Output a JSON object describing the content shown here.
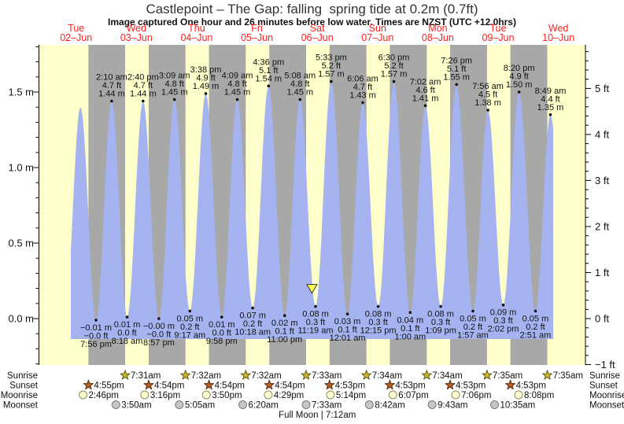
{
  "header": {
    "title": "Castlepoint – The Gap: falling  spring tide at 0.2m (0.7ft)",
    "subtitle": "Image captured One hour and 26 minutes before low water. Times are NZST (UTC +12.0hrs)"
  },
  "colors": {
    "background": "#ffffff",
    "day_band": "#ffffcc",
    "night_band": "#a8a8a8",
    "tide_fill": "#a5b4f0",
    "date_label": "#ff2222",
    "marker_fill": "#ffff55",
    "marker_stroke": "#333333",
    "axis": "#000000",
    "text": "#111111"
  },
  "chart_data": {
    "type": "area",
    "title": "Castlepoint – The Gap: falling  spring tide at 0.2m (0.7ft)",
    "ylabel_left": "m",
    "ylabel_right": "ft",
    "y_range_m": [
      -0.3,
      1.8
    ],
    "grid": false,
    "days": [
      {
        "name": "Tue",
        "date": "02–Jun"
      },
      {
        "name": "Wed",
        "date": "03–Jun"
      },
      {
        "name": "Thu",
        "date": "04–Jun"
      },
      {
        "name": "Fri",
        "date": "05–Jun"
      },
      {
        "name": "Sat",
        "date": "06–Jun"
      },
      {
        "name": "Sun",
        "date": "07–Jun"
      },
      {
        "name": "Mon",
        "date": "08–Jun"
      },
      {
        "name": "Tue",
        "date": "09–Jun"
      },
      {
        "name": "Wed",
        "date": "10–Jun"
      }
    ],
    "y_axis_left": {
      "unit": "m",
      "labels": [
        {
          "m": 0.0,
          "text": "0.0 m"
        },
        {
          "m": 0.5,
          "text": "0.5 m"
        },
        {
          "m": 1.0,
          "text": "1.0 m"
        },
        {
          "m": 1.5,
          "text": "1.5 m"
        }
      ]
    },
    "y_axis_right": {
      "unit": "ft",
      "labels": [
        {
          "ft": -1,
          "text": "−1 ft"
        },
        {
          "ft": 0,
          "text": "0 ft"
        },
        {
          "ft": 1,
          "text": "1 ft"
        },
        {
          "ft": 2,
          "text": "2 ft"
        },
        {
          "ft": 3,
          "text": "3 ft"
        },
        {
          "ft": 4,
          "text": "4 ft"
        },
        {
          "ft": 5,
          "text": "5 ft"
        }
      ]
    },
    "data_window": {
      "start": {
        "day": 0,
        "time": "9:54 am"
      },
      "end": {
        "day": 8,
        "time": "9:54 am"
      }
    },
    "current_marker": {
      "day": 4,
      "time": "9:53 am",
      "height_m": 0.2
    },
    "tide_events": [
      {
        "day": 0,
        "time": "7:30 am",
        "height_m": 0.0
      },
      {
        "day": 0,
        "time": "1:45 pm",
        "height_m": 1.4
      },
      {
        "day": 0,
        "time": "7:56 pm",
        "height_m": -0.01,
        "kind": "low",
        "lines": [
          "−0.01 m",
          "−0.0 ft",
          "7:56 pm"
        ]
      },
      {
        "day": 1,
        "time": "2:10 am",
        "height_m": 1.44,
        "kind": "high",
        "lines": [
          "2:10 am",
          "4.7 ft",
          "1.44 m"
        ]
      },
      {
        "day": 1,
        "time": "8:18 am",
        "height_m": 0.01,
        "kind": "low",
        "lines": [
          "0.01 m",
          "0.0 ft",
          "8:18 am"
        ]
      },
      {
        "day": 1,
        "time": "2:40 pm",
        "height_m": 1.44,
        "kind": "high",
        "lines": [
          "2:40 pm",
          "4.7 ft",
          "1.44 m"
        ]
      },
      {
        "day": 1,
        "time": "8:57 pm",
        "height_m": 0.0,
        "kind": "low",
        "lines": [
          "−0.00 m",
          "−0.0 ft",
          "8:57 pm"
        ]
      },
      {
        "day": 2,
        "time": "3:09 am",
        "height_m": 1.45,
        "kind": "high",
        "lines": [
          "3:09 am",
          "4.8 ft",
          "1.45 m"
        ]
      },
      {
        "day": 2,
        "time": "9:17 am",
        "height_m": 0.05,
        "kind": "low",
        "lines": [
          "0.05 m",
          "0.2 ft",
          "9:17 am"
        ]
      },
      {
        "day": 2,
        "time": "3:38 pm",
        "height_m": 1.49,
        "kind": "high",
        "lines": [
          "3:38 pm",
          "4.9 ft",
          "1.49 m"
        ]
      },
      {
        "day": 2,
        "time": "9:58 pm",
        "height_m": 0.01,
        "kind": "low",
        "lines": [
          "0.01 m",
          "0.0 ft",
          "9:58 pm"
        ]
      },
      {
        "day": 3,
        "time": "4:09 am",
        "height_m": 1.45,
        "kind": "high",
        "lines": [
          "4:09 am",
          "4.8 ft",
          "1.45 m"
        ]
      },
      {
        "day": 3,
        "time": "10:18 am",
        "height_m": 0.07,
        "kind": "low",
        "lines": [
          "0.07 m",
          "0.2 ft",
          "10:18 am"
        ]
      },
      {
        "day": 3,
        "time": "4:36 pm",
        "height_m": 1.54,
        "kind": "high",
        "lines": [
          "4:36 pm",
          "5.1 ft",
          "1.54 m"
        ]
      },
      {
        "day": 3,
        "time": "11:00 pm",
        "height_m": 0.02,
        "kind": "low",
        "lines": [
          "0.02 m",
          "0.1 ft",
          "11:00 pm"
        ]
      },
      {
        "day": 4,
        "time": "5:08 am",
        "height_m": 1.45,
        "kind": "high",
        "lines": [
          "5:08 am",
          "4.8 ft",
          "1.45 m"
        ]
      },
      {
        "day": 4,
        "time": "11:19 am",
        "height_m": 0.08,
        "kind": "low",
        "lines": [
          "0.08 m",
          "0.3 ft",
          "11:19 am"
        ]
      },
      {
        "day": 4,
        "time": "5:33 pm",
        "height_m": 1.57,
        "kind": "high",
        "lines": [
          "5:33 pm",
          "5.2 ft",
          "1.57 m"
        ]
      },
      {
        "day": 5,
        "time": "12:01 am",
        "height_m": 0.03,
        "kind": "low",
        "lines": [
          "0.03 m",
          "0.1 ft",
          "12:01 am"
        ]
      },
      {
        "day": 5,
        "time": "6:06 am",
        "height_m": 1.43,
        "kind": "high",
        "lines": [
          "6:06 am",
          "4.7 ft",
          "1.43 m"
        ]
      },
      {
        "day": 5,
        "time": "12:15 pm",
        "height_m": 0.08,
        "kind": "low",
        "lines": [
          "0.08 m",
          "0.3 ft",
          "12:15 pm"
        ]
      },
      {
        "day": 5,
        "time": "6:30 pm",
        "height_m": 1.57,
        "kind": "high",
        "lines": [
          "6:30 pm",
          "5.2 ft",
          "1.57 m"
        ]
      },
      {
        "day": 6,
        "time": "1:00 am",
        "height_m": 0.04,
        "kind": "low",
        "lines": [
          "0.04 m",
          "0.1 ft",
          "1:00 am"
        ]
      },
      {
        "day": 6,
        "time": "7:02 am",
        "height_m": 1.41,
        "kind": "high",
        "lines": [
          "7:02 am",
          "4.6 ft",
          "1.41 m"
        ]
      },
      {
        "day": 6,
        "time": "1:09 pm",
        "height_m": 0.08,
        "kind": "low",
        "lines": [
          "0.08 m",
          "0.3 ft",
          "1:09 pm"
        ]
      },
      {
        "day": 6,
        "time": "7:26 pm",
        "height_m": 1.55,
        "kind": "high",
        "lines": [
          "7:26 pm",
          "5.1 ft",
          "1.55 m"
        ]
      },
      {
        "day": 7,
        "time": "1:57 am",
        "height_m": 0.05,
        "kind": "low",
        "lines": [
          "0.05 m",
          "0.2 ft",
          "1:57 am"
        ]
      },
      {
        "day": 7,
        "time": "7:56 am",
        "height_m": 1.38,
        "kind": "high",
        "lines": [
          "7:56 am",
          "4.5 ft",
          "1.38 m"
        ]
      },
      {
        "day": 7,
        "time": "2:02 pm",
        "height_m": 0.09,
        "kind": "low",
        "lines": [
          "0.09 m",
          "0.3 ft",
          "2:02 pm"
        ]
      },
      {
        "day": 7,
        "time": "8:20 pm",
        "height_m": 1.5,
        "kind": "high",
        "lines": [
          "8:20 pm",
          "4.9 ft",
          "1.50 m"
        ]
      },
      {
        "day": 8,
        "time": "2:51 am",
        "height_m": 0.05,
        "kind": "low",
        "lines": [
          "0.05 m",
          "0.2 ft",
          "2:51 am"
        ]
      },
      {
        "day": 8,
        "time": "8:49 am",
        "height_m": 1.35,
        "kind": "high",
        "lines": [
          "8:49 am",
          "4.4 ft",
          "1.35 m"
        ]
      },
      {
        "day": 8,
        "time": "3:10 pm",
        "height_m": 0.09
      }
    ],
    "astro": {
      "rows": [
        {
          "id": "sunrise",
          "label": "Sunrise",
          "icon": "star",
          "fill": "#c9b832",
          "stroke": "#645a14",
          "events": [
            {
              "day": 1,
              "time": "7:31am"
            },
            {
              "day": 2,
              "time": "7:32am"
            },
            {
              "day": 3,
              "time": "7:32am"
            },
            {
              "day": 4,
              "time": "7:33am"
            },
            {
              "day": 5,
              "time": "7:34am"
            },
            {
              "day": 6,
              "time": "7:34am"
            },
            {
              "day": 7,
              "time": "7:35am"
            },
            {
              "day": 8,
              "time": "7:35am"
            }
          ]
        },
        {
          "id": "sunset",
          "label": "Sunset",
          "icon": "star",
          "fill": "#b45f27",
          "stroke": "#5c2d08",
          "events": [
            {
              "day": 0,
              "time": "4:55pm"
            },
            {
              "day": 1,
              "time": "4:54pm"
            },
            {
              "day": 2,
              "time": "4:54pm"
            },
            {
              "day": 3,
              "time": "4:54pm"
            },
            {
              "day": 4,
              "time": "4:53pm"
            },
            {
              "day": 5,
              "time": "4:53pm"
            },
            {
              "day": 6,
              "time": "4:53pm"
            },
            {
              "day": 7,
              "time": "4:53pm"
            }
          ]
        },
        {
          "id": "moonrise",
          "label": "Moonrise",
          "icon": "circle",
          "fill": "#ffffd6",
          "stroke": "#8d8d5e",
          "events": [
            {
              "day": 0,
              "time": "2:46pm"
            },
            {
              "day": 1,
              "time": "3:16pm"
            },
            {
              "day": 2,
              "time": "3:50pm"
            },
            {
              "day": 3,
              "time": "4:29pm"
            },
            {
              "day": 4,
              "time": "5:14pm"
            },
            {
              "day": 5,
              "time": "6:07pm"
            },
            {
              "day": 6,
              "time": "7:06pm"
            },
            {
              "day": 7,
              "time": "8:08pm"
            }
          ]
        },
        {
          "id": "moonset",
          "label": "Moonset",
          "icon": "circle",
          "fill": "#c6c6c6",
          "stroke": "#7a7a7a",
          "events": [
            {
              "day": 1,
              "time": "3:50am"
            },
            {
              "day": 2,
              "time": "5:05am"
            },
            {
              "day": 3,
              "time": "6:20am"
            },
            {
              "day": 4,
              "time": "7:33am"
            },
            {
              "day": 5,
              "time": "8:42am"
            },
            {
              "day": 6,
              "time": "9:43am"
            },
            {
              "day": 7,
              "time": "10:35am"
            }
          ]
        }
      ],
      "footer": "Full Moon | 7:12am"
    }
  }
}
